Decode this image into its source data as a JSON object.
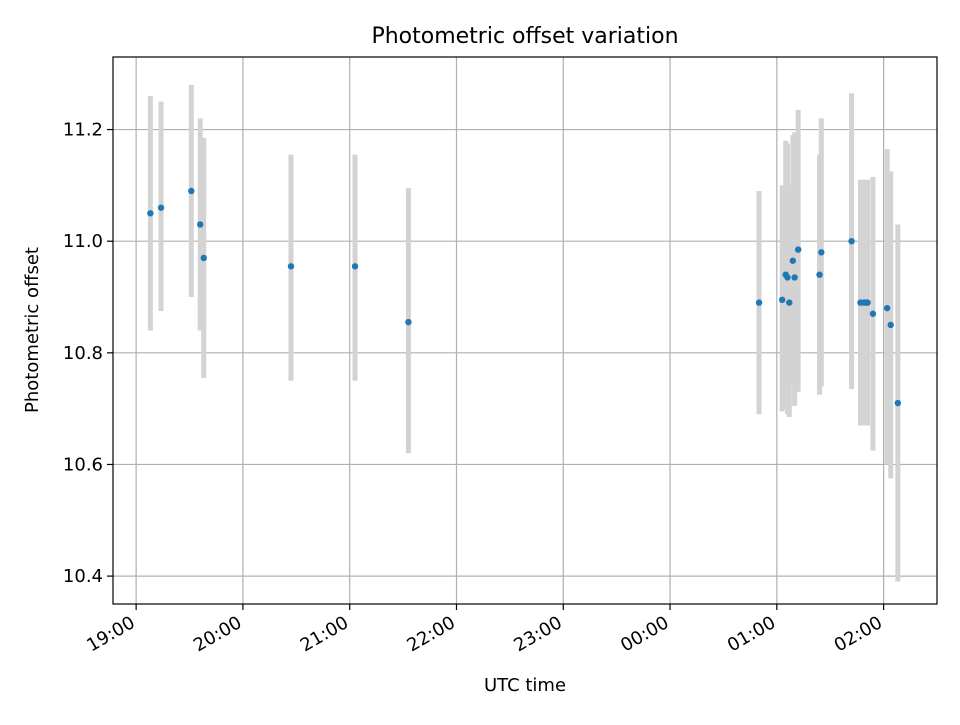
{
  "chart_data": {
    "type": "scatter",
    "title": "Photometric offset variation",
    "xlabel": "UTC time",
    "ylabel": "Photometric offset",
    "x_ticks": [
      "19:00",
      "20:00",
      "21:00",
      "22:00",
      "23:00",
      "00:00",
      "01:00",
      "02:00"
    ],
    "y_ticks": [
      "10.4",
      "10.6",
      "10.8",
      "11.0",
      "11.2"
    ],
    "x_range": [
      "18:47",
      "02:30"
    ],
    "ylim": [
      10.35,
      11.33
    ],
    "grid": true,
    "legend": "none",
    "colors": {
      "marker": "#1f77b4",
      "errorbar": "#d3d3d3",
      "grid": "#b0b0b0"
    },
    "points": [
      {
        "x": "19:08",
        "y": 11.05,
        "y_low": 10.84,
        "y_high": 11.26
      },
      {
        "x": "19:14",
        "y": 11.06,
        "y_low": 10.875,
        "y_high": 11.25
      },
      {
        "x": "19:31",
        "y": 11.09,
        "y_low": 10.9,
        "y_high": 11.28
      },
      {
        "x": "19:36",
        "y": 11.03,
        "y_low": 10.84,
        "y_high": 11.22
      },
      {
        "x": "19:38",
        "y": 10.97,
        "y_low": 10.755,
        "y_high": 11.185
      },
      {
        "x": "20:27",
        "y": 10.955,
        "y_low": 10.75,
        "y_high": 11.155
      },
      {
        "x": "21:03",
        "y": 10.955,
        "y_low": 10.75,
        "y_high": 11.155
      },
      {
        "x": "21:33",
        "y": 10.855,
        "y_low": 10.62,
        "y_high": 11.095
      },
      {
        "x": "00:50",
        "y": 10.89,
        "y_low": 10.69,
        "y_high": 11.09
      },
      {
        "x": "01:03",
        "y": 10.895,
        "y_low": 10.695,
        "y_high": 11.1
      },
      {
        "x": "01:05",
        "y": 10.94,
        "y_low": 10.7,
        "y_high": 11.18
      },
      {
        "x": "01:06",
        "y": 10.935,
        "y_low": 10.69,
        "y_high": 11.175
      },
      {
        "x": "01:07",
        "y": 10.89,
        "y_low": 10.685,
        "y_high": 11.1
      },
      {
        "x": "01:09",
        "y": 10.965,
        "y_low": 10.74,
        "y_high": 11.19
      },
      {
        "x": "01:10",
        "y": 10.935,
        "y_low": 10.705,
        "y_high": 11.195
      },
      {
        "x": "01:12",
        "y": 10.985,
        "y_low": 10.73,
        "y_high": 11.235
      },
      {
        "x": "01:24",
        "y": 10.94,
        "y_low": 10.725,
        "y_high": 11.155
      },
      {
        "x": "01:25",
        "y": 10.98,
        "y_low": 10.74,
        "y_high": 11.22
      },
      {
        "x": "01:42",
        "y": 11.0,
        "y_low": 10.735,
        "y_high": 11.265
      },
      {
        "x": "01:47",
        "y": 10.89,
        "y_low": 10.67,
        "y_high": 11.11
      },
      {
        "x": "01:49",
        "y": 10.89,
        "y_low": 10.67,
        "y_high": 11.11
      },
      {
        "x": "01:50",
        "y": 10.89,
        "y_low": 10.67,
        "y_high": 11.11
      },
      {
        "x": "01:51",
        "y": 10.89,
        "y_low": 10.67,
        "y_high": 11.11
      },
      {
        "x": "01:54",
        "y": 10.87,
        "y_low": 10.625,
        "y_high": 11.115
      },
      {
        "x": "02:02",
        "y": 10.88,
        "y_low": 10.6,
        "y_high": 11.165
      },
      {
        "x": "02:04",
        "y": 10.85,
        "y_low": 10.575,
        "y_high": 11.125
      },
      {
        "x": "02:08",
        "y": 10.71,
        "y_low": 10.39,
        "y_high": 11.03
      }
    ]
  }
}
